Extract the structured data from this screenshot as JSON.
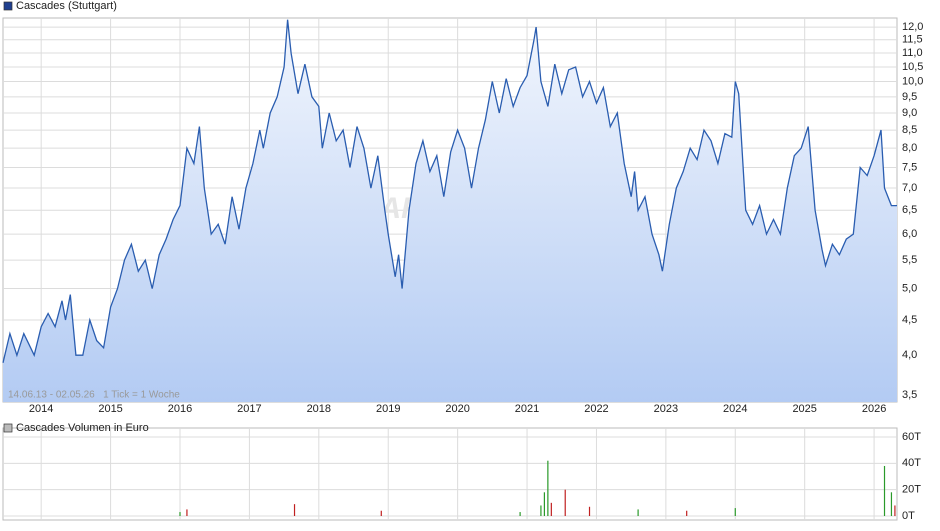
{
  "chart_data": [
    {
      "type": "line",
      "title": "Cascades (Stuttgart)",
      "color": "#2a5db0",
      "legend_color": "#1f3f8f",
      "watermark": "ARIVA.DE",
      "note": "14.06.13 - 02.05.26   1 Tick = 1 Woche",
      "log_y": true,
      "grid": true,
      "xlim": [
        2013.45,
        2026.33
      ],
      "xticks": [
        2014,
        2015,
        2016,
        2017,
        2018,
        2019,
        2020,
        2021,
        2022,
        2023,
        2024,
        2025,
        2026
      ],
      "ylim": [
        3.42,
        12.37
      ],
      "yticks": [
        {
          "value": 3.5,
          "label": "3,5"
        },
        {
          "value": 4,
          "label": "4,0"
        },
        {
          "value": 4.5,
          "label": "4,5"
        },
        {
          "value": 5,
          "label": "5,0"
        },
        {
          "value": 5.5,
          "label": "5,5"
        },
        {
          "value": 6,
          "label": "6,0"
        },
        {
          "value": 6.5,
          "label": "6,5"
        },
        {
          "value": 7,
          "label": "7,0"
        },
        {
          "value": 7.5,
          "label": "7,5"
        },
        {
          "value": 8,
          "label": "8,0"
        },
        {
          "value": 8.5,
          "label": "8,5"
        },
        {
          "value": 9,
          "label": "9,0"
        },
        {
          "value": 9.5,
          "label": "9,5"
        },
        {
          "value": 10,
          "label": "10,0"
        },
        {
          "value": 10.5,
          "label": "10,5"
        },
        {
          "value": 11,
          "label": "11,0"
        },
        {
          "value": 11.5,
          "label": "11,5"
        },
        {
          "value": 12,
          "label": "12,0"
        }
      ],
      "x": [
        2013.45,
        2013.55,
        2013.65,
        2013.75,
        2013.9,
        2014.0,
        2014.1,
        2014.2,
        2014.3,
        2014.35,
        2014.42,
        2014.5,
        2014.6,
        2014.7,
        2014.8,
        2014.9,
        2015.0,
        2015.1,
        2015.2,
        2015.3,
        2015.4,
        2015.5,
        2015.6,
        2015.7,
        2015.8,
        2015.9,
        2016.0,
        2016.1,
        2016.2,
        2016.28,
        2016.35,
        2016.45,
        2016.55,
        2016.65,
        2016.75,
        2016.85,
        2016.95,
        2017.05,
        2017.15,
        2017.2,
        2017.3,
        2017.4,
        2017.5,
        2017.55,
        2017.6,
        2017.7,
        2017.8,
        2017.9,
        2018.0,
        2018.05,
        2018.15,
        2018.25,
        2018.35,
        2018.45,
        2018.55,
        2018.65,
        2018.75,
        2018.85,
        2018.95,
        2019.0,
        2019.1,
        2019.15,
        2019.2,
        2019.3,
        2019.4,
        2019.5,
        2019.6,
        2019.7,
        2019.8,
        2019.9,
        2020.0,
        2020.1,
        2020.2,
        2020.3,
        2020.4,
        2020.5,
        2020.6,
        2020.7,
        2020.8,
        2020.9,
        2021.0,
        2021.1,
        2021.13,
        2021.2,
        2021.3,
        2021.4,
        2021.5,
        2021.6,
        2021.7,
        2021.8,
        2021.9,
        2022.0,
        2022.1,
        2022.2,
        2022.3,
        2022.4,
        2022.5,
        2022.55,
        2022.6,
        2022.7,
        2022.8,
        2022.9,
        2022.95,
        2023.05,
        2023.15,
        2023.25,
        2023.35,
        2023.45,
        2023.55,
        2023.65,
        2023.75,
        2023.85,
        2023.95,
        2024.0,
        2024.05,
        2024.15,
        2024.25,
        2024.35,
        2024.45,
        2024.55,
        2024.65,
        2024.75,
        2024.85,
        2024.95,
        2025.05,
        2025.15,
        2025.25,
        2025.3,
        2025.4,
        2025.5,
        2025.6,
        2025.7,
        2025.8,
        2025.9,
        2026.0,
        2026.1,
        2026.15,
        2026.25,
        2026.33
      ],
      "values": [
        3.9,
        4.3,
        4.0,
        4.3,
        4.0,
        4.4,
        4.6,
        4.4,
        4.8,
        4.5,
        4.9,
        4.0,
        4.0,
        4.5,
        4.2,
        4.1,
        4.7,
        5.0,
        5.5,
        5.8,
        5.3,
        5.5,
        5.0,
        5.6,
        5.9,
        6.3,
        6.6,
        8.0,
        7.6,
        8.6,
        7.0,
        6.0,
        6.2,
        5.8,
        6.8,
        6.1,
        7.0,
        7.6,
        8.5,
        8.0,
        9.0,
        9.5,
        10.5,
        12.3,
        11.0,
        9.6,
        10.6,
        9.5,
        9.2,
        8.0,
        9.0,
        8.2,
        8.5,
        7.5,
        8.6,
        8.0,
        7.0,
        7.8,
        6.5,
        6.0,
        5.2,
        5.6,
        5.0,
        6.5,
        7.6,
        8.2,
        7.4,
        7.8,
        6.8,
        7.9,
        8.5,
        8.0,
        7.0,
        8.0,
        8.8,
        10.0,
        9.0,
        10.1,
        9.2,
        9.8,
        10.2,
        11.5,
        12.0,
        10.0,
        9.2,
        10.6,
        9.6,
        10.4,
        10.5,
        9.5,
        10.0,
        9.3,
        9.8,
        8.6,
        9.0,
        7.6,
        6.8,
        7.4,
        6.5,
        6.8,
        6.0,
        5.6,
        5.3,
        6.2,
        7.0,
        7.4,
        8.0,
        7.7,
        8.5,
        8.2,
        7.6,
        8.4,
        8.3,
        10.0,
        9.6,
        6.5,
        6.2,
        6.6,
        6.0,
        6.3,
        6.0,
        7.0,
        7.8,
        8.0,
        8.6,
        6.5,
        5.7,
        5.4,
        5.8,
        5.6,
        5.9,
        6.0,
        7.5,
        7.3,
        7.8,
        8.5,
        7.0,
        6.6,
        6.6
      ]
    },
    {
      "type": "bar",
      "title": "Cascades Volumen in Euro",
      "legend_color": "#bbbbbb",
      "grid": true,
      "xlim": [
        2013.45,
        2026.33
      ],
      "xticks": [
        2014,
        2015,
        2016,
        2017,
        2018,
        2019,
        2020,
        2021,
        2022,
        2023,
        2024,
        2025,
        2026
      ],
      "ylim": [
        0,
        60
      ],
      "yticks": [
        {
          "value": 0,
          "label": "0T"
        },
        {
          "value": 20,
          "label": "20T"
        },
        {
          "value": 40,
          "label": "40T"
        },
        {
          "value": 60,
          "label": "60T"
        }
      ],
      "x": [
        2016.0,
        2016.1,
        2017.65,
        2018.9,
        2020.9,
        2021.2,
        2021.25,
        2021.3,
        2021.35,
        2021.55,
        2021.9,
        2022.6,
        2023.3,
        2024.0,
        2026.15,
        2026.25,
        2026.3
      ],
      "values": [
        3,
        5,
        9,
        4,
        3,
        8,
        18,
        42,
        10,
        20,
        7,
        5,
        4,
        6,
        38,
        18,
        8
      ],
      "colors": [
        "#2a9a2a",
        "#c02020",
        "#c02020",
        "#c02020",
        "#2a9a2a",
        "#2a9a2a",
        "#2a9a2a",
        "#2a9a2a",
        "#c02020",
        "#c02020",
        "#c02020",
        "#2a9a2a",
        "#c02020",
        "#2a9a2a",
        "#2a9a2a",
        "#2a9a2a",
        "#c02020"
      ]
    }
  ]
}
